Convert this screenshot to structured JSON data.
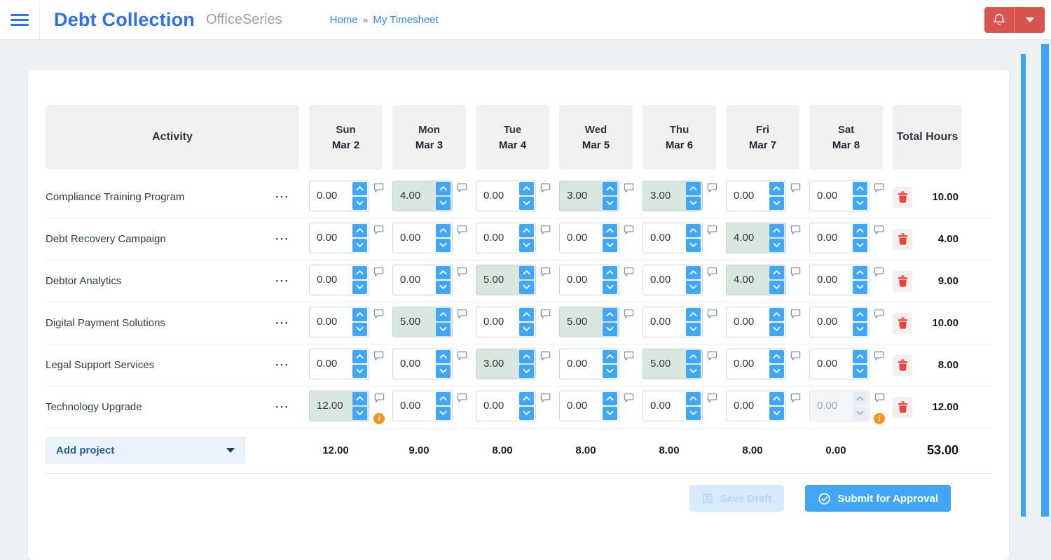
{
  "app": {
    "title": "Debt Collection",
    "brand": "OfficeSeries"
  },
  "breadcrumb": {
    "home": "Home",
    "separator": "»",
    "current": "My Timesheet"
  },
  "timesheet": {
    "columns": {
      "activity": "Activity",
      "total": "Total Hours"
    },
    "days": [
      {
        "name": "Sun",
        "date": "Mar 2"
      },
      {
        "name": "Mon",
        "date": "Mar 3"
      },
      {
        "name": "Tue",
        "date": "Mar 4"
      },
      {
        "name": "Wed",
        "date": "Mar 5"
      },
      {
        "name": "Thu",
        "date": "Mar 6"
      },
      {
        "name": "Fri",
        "date": "Mar 7"
      },
      {
        "name": "Sat",
        "date": "Mar 8"
      }
    ],
    "rows": [
      {
        "activity": "Compliance Training Program",
        "values": [
          "0.00",
          "4.00",
          "0.00",
          "3.00",
          "3.00",
          "0.00",
          "0.00"
        ],
        "highlighted": [
          1,
          3,
          4
        ],
        "disabled": [],
        "warnings": [],
        "total": "10.00"
      },
      {
        "activity": "Debt Recovery Campaign",
        "values": [
          "0.00",
          "0.00",
          "0.00",
          "0.00",
          "0.00",
          "4.00",
          "0.00"
        ],
        "highlighted": [
          5
        ],
        "disabled": [],
        "warnings": [],
        "total": "4.00"
      },
      {
        "activity": "Debtor Analytics",
        "values": [
          "0.00",
          "0.00",
          "5.00",
          "0.00",
          "0.00",
          "4.00",
          "0.00"
        ],
        "highlighted": [
          2,
          5
        ],
        "disabled": [],
        "warnings": [],
        "total": "9.00"
      },
      {
        "activity": "Digital Payment Solutions",
        "values": [
          "0.00",
          "5.00",
          "0.00",
          "5.00",
          "0.00",
          "0.00",
          "0.00"
        ],
        "highlighted": [
          1,
          3
        ],
        "disabled": [],
        "warnings": [],
        "total": "10.00"
      },
      {
        "activity": "Legal Support Services",
        "values": [
          "0.00",
          "0.00",
          "3.00",
          "0.00",
          "5.00",
          "0.00",
          "0.00"
        ],
        "highlighted": [
          2,
          4
        ],
        "disabled": [],
        "warnings": [],
        "total": "8.00"
      },
      {
        "activity": "Technology Upgrade",
        "values": [
          "12.00",
          "0.00",
          "0.00",
          "0.00",
          "0.00",
          "0.00",
          "0.00"
        ],
        "highlighted": [
          0
        ],
        "disabled": [
          6
        ],
        "warnings": [
          0,
          6
        ],
        "total": "12.00"
      }
    ],
    "day_totals": [
      "12.00",
      "9.00",
      "8.00",
      "8.00",
      "8.00",
      "8.00",
      "0.00"
    ],
    "grand_total": "53.00",
    "row_menu_glyph": "···",
    "warning_glyph": "i"
  },
  "actions": {
    "add_project": "Add project",
    "save_draft": "Save Draft",
    "submit": "Submit for Approval"
  },
  "colors": {
    "brand_blue": "#2d6ff2",
    "accent_blue": "#41a6f6",
    "danger_red": "#d9534f",
    "highlight_green": "#d9e7e1",
    "warning_orange": "#f5941f"
  }
}
